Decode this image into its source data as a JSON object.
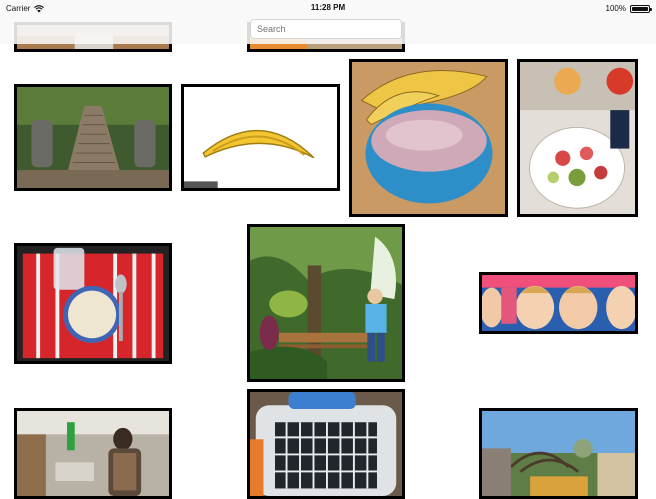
{
  "status_bar": {
    "carrier": "Carrier",
    "time": "11:28 PM",
    "battery": "100%"
  },
  "search": {
    "placeholder": "Search"
  },
  "photos": [
    {
      "subject": "partial-top-left"
    },
    {
      "subject": "partial-top-center"
    },
    {
      "subject": "temple-stairs"
    },
    {
      "subject": "banana"
    },
    {
      "subject": "smoothie-bowl"
    },
    {
      "subject": "salad-bowl"
    },
    {
      "subject": "cereal-tray"
    },
    {
      "subject": "banana-tree-woman"
    },
    {
      "subject": "face-billboard"
    },
    {
      "subject": "woman-kitchen"
    },
    {
      "subject": "pet-carrier"
    },
    {
      "subject": "amusement-park"
    }
  ]
}
